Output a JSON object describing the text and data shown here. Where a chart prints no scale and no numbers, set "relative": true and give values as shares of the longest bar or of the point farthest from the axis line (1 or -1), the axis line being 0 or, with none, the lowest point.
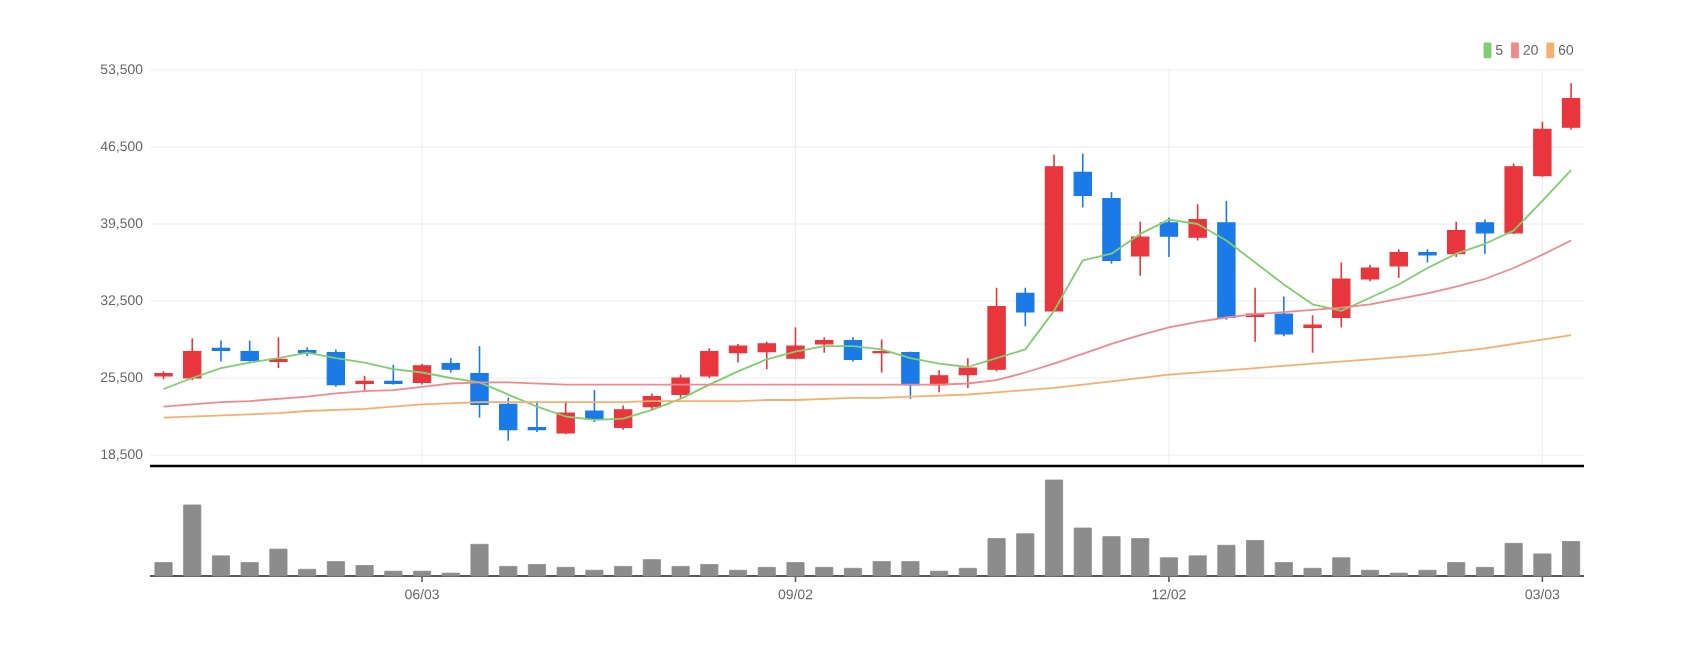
{
  "chart_data": [
    {
      "type": "candlestick",
      "categories": [
        null,
        null,
        null,
        null,
        null,
        null,
        null,
        null,
        null,
        null,
        null,
        null,
        null,
        null,
        null,
        null,
        null,
        null,
        null,
        null,
        null,
        null,
        null,
        null,
        null,
        null,
        null,
        null,
        null,
        null,
        null,
        null,
        null,
        null,
        null,
        null,
        null,
        null,
        null,
        null,
        null,
        null,
        null,
        null,
        null,
        null,
        null,
        null,
        null,
        null
      ],
      "ohlc": [
        [
          25700,
          26100,
          25400,
          25900
        ],
        [
          25500,
          29100,
          25300,
          27900
        ],
        [
          28200,
          28900,
          27000,
          28000
        ],
        [
          27900,
          28900,
          26900,
          27100
        ],
        [
          27000,
          29200,
          26400,
          27200
        ],
        [
          28000,
          28300,
          27500,
          27800
        ],
        [
          27800,
          28100,
          24700,
          24900
        ],
        [
          25000,
          25700,
          24300,
          25200
        ],
        [
          25200,
          26700,
          24900,
          25000
        ],
        [
          25100,
          26800,
          24900,
          26600
        ],
        [
          26800,
          27300,
          26000,
          26300
        ],
        [
          25900,
          28400,
          21900,
          23100
        ],
        [
          23100,
          23700,
          19800,
          20800
        ],
        [
          21000,
          23400,
          20600,
          20800
        ],
        [
          20500,
          23400,
          20400,
          22300
        ],
        [
          22500,
          24400,
          21500,
          21800
        ],
        [
          21000,
          23000,
          20800,
          22600
        ],
        [
          22900,
          24100,
          22600,
          23800
        ],
        [
          24000,
          25800,
          23700,
          25500
        ],
        [
          25700,
          28200,
          25500,
          27900
        ],
        [
          27800,
          28600,
          26900,
          28400
        ],
        [
          27900,
          28800,
          26300,
          28600
        ],
        [
          27300,
          30100,
          27200,
          28400
        ],
        [
          28600,
          29200,
          27800,
          28900
        ],
        [
          28900,
          29200,
          27000,
          27200
        ],
        [
          27800,
          29000,
          26000,
          27900
        ],
        [
          27800,
          27900,
          23600,
          24900
        ],
        [
          24900,
          26200,
          24200,
          25700
        ],
        [
          25800,
          27300,
          24600,
          26400
        ],
        [
          26300,
          33700,
          26100,
          32000
        ],
        [
          33200,
          33700,
          30200,
          31500
        ],
        [
          31600,
          45800,
          31500,
          44700
        ],
        [
          44200,
          45900,
          41000,
          42100
        ],
        [
          41800,
          42400,
          35900,
          36200
        ],
        [
          36600,
          39700,
          34800,
          38300
        ],
        [
          39600,
          40100,
          36500,
          38400
        ],
        [
          38300,
          41300,
          38000,
          39900
        ],
        [
          39600,
          41600,
          30800,
          31000
        ],
        [
          31100,
          33700,
          28800,
          31300
        ],
        [
          31300,
          32900,
          29300,
          29500
        ],
        [
          30100,
          31200,
          27800,
          30300
        ],
        [
          31000,
          36000,
          30100,
          34500
        ],
        [
          34500,
          35800,
          34300,
          35500
        ],
        [
          35700,
          37200,
          34600,
          36900
        ],
        [
          36900,
          37200,
          36000,
          36700
        ],
        [
          36800,
          39700,
          36500,
          38900
        ],
        [
          39600,
          39900,
          36800,
          38700
        ],
        [
          38700,
          45000,
          38600,
          44700
        ],
        [
          43900,
          48800,
          43800,
          48100
        ],
        [
          48300,
          52300,
          48100,
          50900
        ]
      ],
      "colors": [
        "#e8363c",
        "#e8363c",
        "#1a7ae8",
        "#1a7ae8",
        "#e8363c",
        "#1a7ae8",
        "#1a7ae8",
        "#e8363c",
        "#1a7ae8",
        "#e8363c",
        "#1a7ae8",
        "#1a7ae8",
        "#1a7ae8",
        "#1a7ae8",
        "#e8363c",
        "#1a7ae8",
        "#e8363c",
        "#e8363c",
        "#e8363c",
        "#e8363c",
        "#e8363c",
        "#e8363c",
        "#e8363c",
        "#e8363c",
        "#1a7ae8",
        "#e8363c",
        "#1a7ae8",
        "#e8363c",
        "#e8363c",
        "#e8363c",
        "#1a7ae8",
        "#e8363c",
        "#1a7ae8",
        "#1a7ae8",
        "#e8363c",
        "#1a7ae8",
        "#e8363c",
        "#1a7ae8",
        "#e8363c",
        "#1a7ae8",
        "#e8363c",
        "#e8363c",
        "#e8363c",
        "#e8363c",
        "#1a7ae8",
        "#e8363c",
        "#1a7ae8",
        "#e8363c",
        "#e8363c",
        "#e8363c"
      ],
      "series": [
        {
          "name": "5",
          "type": "line",
          "color": "#7fcf6f",
          "values": [
            24500,
            25500,
            26400,
            26900,
            27300,
            27800,
            27300,
            26900,
            26300,
            26000,
            25500,
            25100,
            24000,
            22900,
            22000,
            21700,
            21800,
            22600,
            23600,
            24900,
            26100,
            27200,
            27900,
            28400,
            28400,
            28100,
            27300,
            26800,
            26500,
            27300,
            28100,
            31600,
            36200,
            36800,
            38600,
            39900,
            39500,
            38000,
            36000,
            34000,
            32200,
            31600,
            32800,
            34000,
            35500,
            36800,
            37700,
            38900,
            41600,
            44400
          ]
        },
        {
          "name": "20",
          "type": "line",
          "color": "#f08a8e",
          "values": [
            22900,
            23100,
            23300,
            23400,
            23600,
            23800,
            24100,
            24300,
            24400,
            24700,
            25000,
            25100,
            25100,
            25000,
            24900,
            24900,
            24900,
            24900,
            24900,
            24900,
            24900,
            24900,
            24900,
            24900,
            24900,
            24900,
            24900,
            24900,
            25000,
            25300,
            26000,
            26800,
            27700,
            28600,
            29400,
            30100,
            30600,
            31000,
            31300,
            31500,
            31700,
            31900,
            32200,
            32700,
            33200,
            33800,
            34500,
            35500,
            36700,
            38000
          ]
        },
        {
          "name": "60",
          "type": "line",
          "color": "#f5b070",
          "values": [
            21900,
            22000,
            22100,
            22200,
            22300,
            22500,
            22600,
            22700,
            22900,
            23100,
            23200,
            23300,
            23300,
            23300,
            23300,
            23300,
            23300,
            23400,
            23400,
            23400,
            23400,
            23500,
            23500,
            23600,
            23700,
            23700,
            23800,
            23900,
            24000,
            24200,
            24400,
            24600,
            24900,
            25200,
            25500,
            25800,
            26000,
            26200,
            26400,
            26600,
            26800,
            27000,
            27200,
            27400,
            27600,
            27900,
            28200,
            28600,
            29000,
            29400
          ]
        }
      ],
      "ylim": [
        17500,
        53500
      ],
      "yticks": [
        {
          "value": 18500,
          "label": "18,500"
        },
        {
          "value": 25500,
          "label": "25,500"
        },
        {
          "value": 32500,
          "label": "32,500"
        },
        {
          "value": 39500,
          "label": "39,500"
        },
        {
          "value": 46500,
          "label": "46,500"
        },
        {
          "value": 53500,
          "label": "53,500"
        }
      ],
      "grid": true,
      "legend": "top right",
      "marker": "none",
      "tick_labels": "y"
    },
    {
      "type": "bar",
      "relative": true,
      "color": "#8c8c8c",
      "categories": [
        null,
        null,
        null,
        null,
        null,
        null,
        null,
        null,
        null,
        "06/03",
        null,
        null,
        null,
        null,
        null,
        null,
        null,
        null,
        null,
        null,
        null,
        null,
        "09/02",
        null,
        null,
        null,
        null,
        null,
        null,
        null,
        null,
        null,
        null,
        null,
        null,
        "12/02",
        null,
        null,
        null,
        null,
        null,
        null,
        null,
        null,
        null,
        null,
        null,
        null,
        "03/03",
        null
      ],
      "values": [
        0.14,
        0.74,
        0.21,
        0.14,
        0.28,
        0.07,
        0.15,
        0.11,
        0.05,
        0.05,
        0.03,
        0.33,
        0.1,
        0.12,
        0.09,
        0.06,
        0.1,
        0.17,
        0.1,
        0.12,
        0.06,
        0.09,
        0.14,
        0.09,
        0.08,
        0.15,
        0.15,
        0.05,
        0.08,
        0.39,
        0.44,
        1,
        0.5,
        0.41,
        0.39,
        0.19,
        0.21,
        0.32,
        0.37,
        0.14,
        0.08,
        0.19,
        0.06,
        0.03,
        0.06,
        0.14,
        0.09,
        0.34,
        0.23,
        0.36
      ],
      "tick_labels": "x"
    }
  ]
}
